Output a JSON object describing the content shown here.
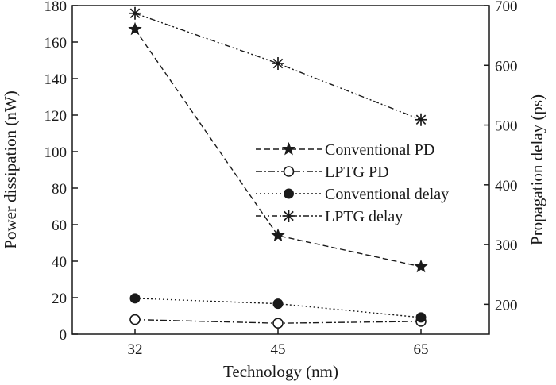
{
  "chart_data": {
    "type": "line",
    "x": [
      32,
      45,
      65
    ],
    "xlabel": "Technology (nm)",
    "x_tick_labels": [
      "32",
      "45",
      "65"
    ],
    "left_axis": {
      "label": "Power dissipation (nW)",
      "range": [
        0,
        180
      ],
      "ticks": [
        0,
        20,
        40,
        60,
        80,
        100,
        120,
        140,
        160,
        180
      ],
      "tick_labels": [
        "0",
        "20",
        "40",
        "60",
        "80",
        "100",
        "120",
        "140",
        "160",
        "180"
      ]
    },
    "right_axis": {
      "label": "Propagation delay (ps)",
      "range": [
        150,
        700
      ],
      "ticks": [
        200,
        300,
        400,
        500,
        600,
        700
      ],
      "tick_labels": [
        "200",
        "300",
        "400",
        "500",
        "600",
        "700"
      ]
    },
    "series": [
      {
        "name": "Conventional PD",
        "axis": "left",
        "values": [
          167,
          54,
          37
        ],
        "marker": "star-filled",
        "dash": "dashed",
        "color": "#1a1a1a"
      },
      {
        "name": "LPTG PD",
        "axis": "left",
        "values": [
          8,
          6,
          7
        ],
        "marker": "circle-open",
        "dash": "dash-dot",
        "color": "#1a1a1a"
      },
      {
        "name": "Conventional delay",
        "axis": "right",
        "values": [
          210,
          201,
          178
        ],
        "marker": "circle-filled",
        "dash": "dotted",
        "color": "#1a1a1a"
      },
      {
        "name": "LPTG delay",
        "axis": "right",
        "values": [
          687,
          603,
          509
        ],
        "marker": "asterisk",
        "dash": "dash-dot-dot",
        "color": "#1a1a1a"
      }
    ],
    "grid": false,
    "legend_position": "middle-right"
  }
}
